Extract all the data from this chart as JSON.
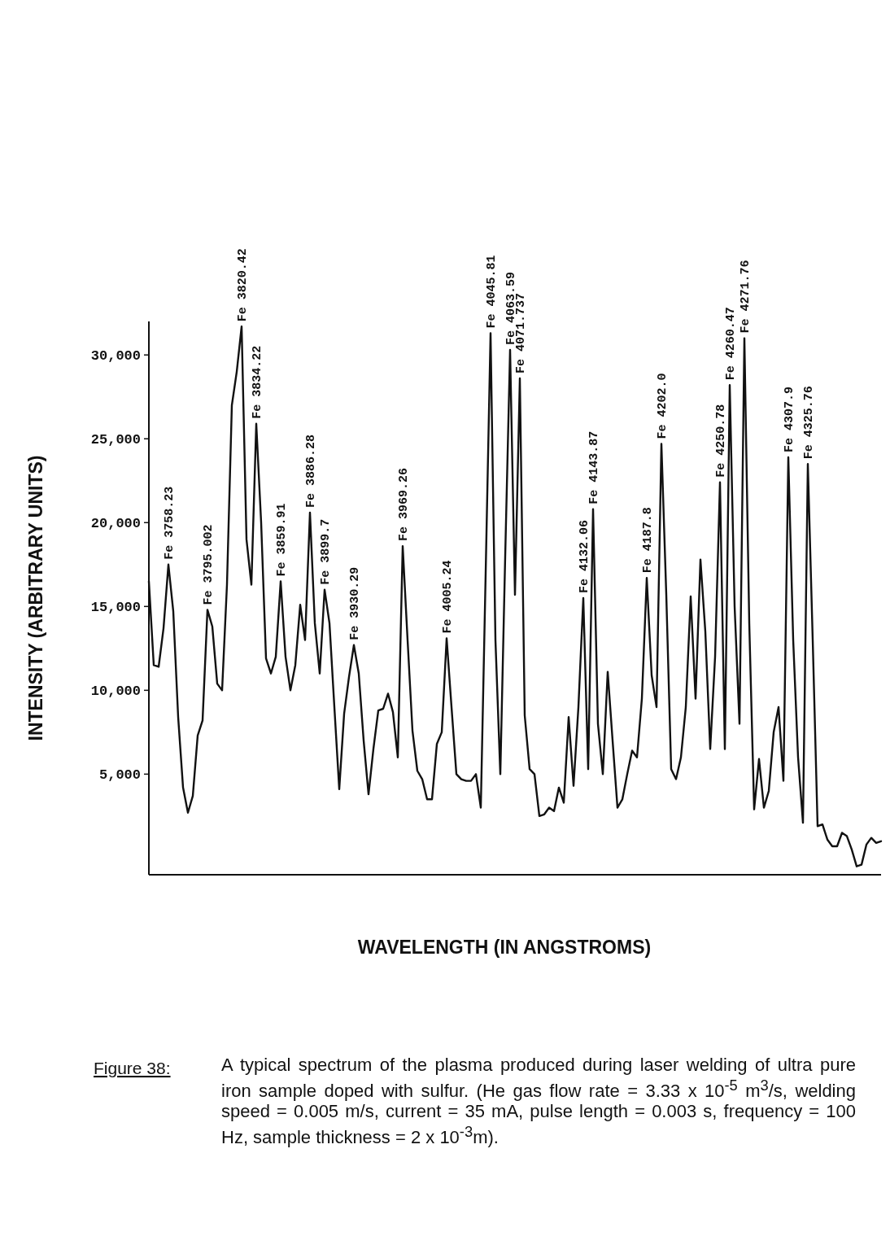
{
  "chart_data": {
    "type": "line",
    "xlabel": "WAVELENGTH (IN ANGSTROMS)",
    "ylabel": "INTENSITY (ARBITRARY UNITS)",
    "categories": [
      null,
      null,
      null,
      null,
      null,
      null,
      null,
      null,
      null,
      null,
      null,
      null,
      null,
      null,
      null,
      null,
      null,
      null,
      null,
      null,
      null,
      null,
      null,
      null,
      null,
      null,
      null,
      null,
      null,
      null,
      null,
      null,
      null,
      null,
      null,
      null,
      null,
      null,
      null,
      null,
      null,
      null,
      null,
      null,
      null,
      null,
      null,
      null,
      null,
      null,
      null,
      null,
      null,
      null,
      null,
      null,
      null,
      null,
      null,
      null,
      null,
      null,
      null,
      null,
      null,
      null,
      null,
      null,
      null,
      null,
      null,
      null,
      null,
      null,
      null,
      null,
      null,
      null,
      null,
      null,
      null,
      null,
      null,
      null,
      null,
      null,
      null,
      null,
      null,
      null,
      null,
      null,
      null,
      null,
      null,
      null,
      null,
      null,
      null,
      null,
      null,
      null,
      null,
      null,
      null,
      null,
      null,
      null,
      null,
      null,
      null,
      null,
      null,
      null,
      null,
      null,
      null,
      null,
      null,
      null,
      null,
      null,
      null,
      null,
      null,
      null,
      null,
      null,
      null,
      null,
      null,
      null,
      null,
      null,
      null,
      null,
      null,
      null,
      null,
      null,
      null,
      null,
      null,
      null,
      null,
      null,
      null,
      null,
      null,
      null,
      null
    ],
    "series": [
      {
        "color": "#111111",
        "values": [
          16500,
          11500,
          11400,
          13700,
          17500,
          14700,
          8400,
          4200,
          2700,
          3700,
          7300,
          8200,
          14800,
          13800,
          10400,
          10000,
          16300,
          27000,
          29000,
          31700,
          19000,
          16300,
          25900,
          20000,
          11900,
          11000,
          12000,
          16500,
          12000,
          10000,
          11500,
          15100,
          13000,
          20600,
          14000,
          11000,
          16000,
          14000,
          9000,
          4100,
          8600,
          10800,
          12700,
          11000,
          7000,
          3800,
          6500,
          8800,
          8900,
          9800,
          8700,
          6000,
          18600,
          13000,
          7600,
          5200,
          4700,
          3500,
          3500,
          6800,
          7500,
          13100,
          9000,
          5000,
          4700,
          4600,
          4600,
          5000,
          3000,
          17000,
          31300,
          13000,
          5000,
          18000,
          30300,
          15700,
          28600,
          8500,
          5300,
          5000,
          2500,
          2600,
          3000,
          2800,
          4200,
          3300,
          8400,
          4300,
          9000,
          15500,
          5300,
          20800,
          8000,
          5000,
          11100,
          7000,
          3000,
          3500,
          5000,
          6400,
          6000,
          9500,
          16700,
          10900,
          9000,
          24700,
          15700,
          5300,
          4700,
          6000,
          9000,
          15600,
          9500,
          17800,
          13500,
          6500,
          12000,
          22400,
          6500,
          28200,
          15000,
          8000,
          31000,
          14000,
          2900,
          5900,
          3000,
          4000,
          7500,
          9000,
          4600,
          23900,
          13000,
          6000,
          2100,
          23500,
          13000,
          1900,
          2000,
          1100,
          700,
          700,
          1500,
          1300,
          500,
          -500,
          -400,
          800,
          1200,
          900,
          1000
        ],
        "value_labels": [
          null,
          null,
          null,
          null,
          "Fe 3758.23",
          null,
          null,
          null,
          null,
          null,
          null,
          null,
          "Fe 3795.002",
          null,
          null,
          null,
          null,
          null,
          null,
          "Fe 3820.42",
          null,
          null,
          "Fe 3834.22",
          null,
          null,
          null,
          null,
          "Fe 3859.91",
          null,
          null,
          null,
          null,
          null,
          "Fe 3886.28",
          null,
          null,
          "Fe 3899.7",
          null,
          null,
          null,
          null,
          null,
          "Fe 3930.29",
          null,
          null,
          null,
          null,
          null,
          null,
          null,
          null,
          null,
          "Fe 3969.26",
          null,
          null,
          null,
          null,
          null,
          null,
          null,
          null,
          "Fe 4005.24",
          null,
          null,
          null,
          null,
          null,
          null,
          null,
          null,
          "Fe 4045.81",
          null,
          null,
          null,
          "Fe 4063.59",
          null,
          "Fe 4071.737",
          null,
          null,
          null,
          null,
          null,
          null,
          null,
          null,
          null,
          null,
          null,
          null,
          "Fe 4132.06",
          null,
          "Fe 4143.87",
          null,
          null,
          null,
          null,
          null,
          null,
          null,
          null,
          null,
          null,
          "Fe 4187.8",
          null,
          null,
          "Fe 4202.0",
          null,
          null,
          null,
          null,
          null,
          null,
          null,
          null,
          null,
          null,
          null,
          "Fe 4250.78",
          null,
          "Fe 4260.47",
          null,
          null,
          "Fe 4271.76",
          null,
          null,
          null,
          null,
          null,
          null,
          null,
          null,
          "Fe 4307.9",
          null,
          null,
          null,
          "Fe 4325.76",
          null,
          null,
          null,
          null,
          null,
          null,
          null,
          null,
          null,
          null,
          null,
          null,
          null,
          null,
          null
        ]
      }
    ],
    "ylim": [
      -1000,
      32000
    ],
    "yticks": [
      {
        "value": 5000,
        "label": "5,000"
      },
      {
        "value": 10000,
        "label": "10,000"
      },
      {
        "value": 15000,
        "label": "15,000"
      },
      {
        "value": 20000,
        "label": "20,000"
      },
      {
        "value": 25000,
        "label": "25,000"
      },
      {
        "value": 30000,
        "label": "30,000"
      }
    ],
    "grid": false,
    "marker": "none",
    "line_style": "solid",
    "annotations": [
      "Figure 38:",
      "A typical spectrum of the plasma produced during laser welding of ultra pure iron sample doped with sulfur. (He gas flow rate = 3.33 x 10$^{-5}$ m$^{3}$/s, welding speed = 0.005 m/s, current = 35 mA, pulse length = 0.003 s, frequency = 100 Hz, sample thickness = 2 x 10$^{-3}$m)."
    ]
  }
}
